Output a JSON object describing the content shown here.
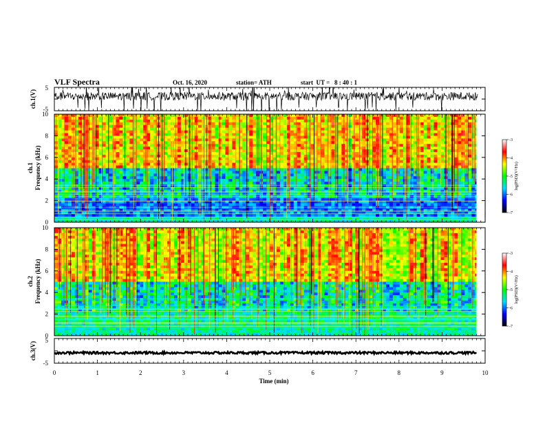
{
  "header": {
    "title": "VLF Spectra",
    "date": "Oct. 16, 2020",
    "station": "station= ATH",
    "start": "start  UT =   8 : 40 : 1"
  },
  "chart_data": [
    {
      "id": "ch1-waveform",
      "type": "line",
      "ylabel": "ch.1(V)",
      "ylim": [
        -5,
        5
      ],
      "yticks": [
        "5",
        "-5"
      ],
      "xlim": [
        0,
        10
      ],
      "line_color": "#000000"
    },
    {
      "id": "ch1-spectrogram",
      "type": "heatmap",
      "ylabel": "ch.1\nFrequency (kHz)",
      "ylim": [
        0,
        10
      ],
      "yticks": [
        "0",
        "2",
        "4",
        "6",
        "8",
        "10"
      ],
      "xlim": [
        0,
        10
      ],
      "colorbar": {
        "label": "log(PSD)(V²/Hz)",
        "ticks": [
          "-3",
          "-4",
          "-5",
          "-6",
          "-7"
        ],
        "range": [
          -7,
          -3
        ],
        "colors": [
          "#000000",
          "#0000ff",
          "#00e0ff",
          "#00ff00",
          "#ffff00",
          "#ff0000",
          "#ffffff"
        ]
      }
    },
    {
      "id": "ch2-spectrogram",
      "type": "heatmap",
      "ylabel": "ch.2\nFrequency (kHz)",
      "ylim": [
        0,
        10
      ],
      "yticks": [
        "0",
        "2",
        "4",
        "6",
        "8",
        "10"
      ],
      "xlim": [
        0,
        10
      ],
      "colorbar": {
        "label": "log(PSD)(V²/Hz)",
        "ticks": [
          "-3",
          "-4",
          "-5",
          "-6",
          "-7"
        ],
        "range": [
          -7,
          -3
        ],
        "colors": [
          "#000000",
          "#0000ff",
          "#00e0ff",
          "#00ff00",
          "#ffff00",
          "#ff0000",
          "#ffffff"
        ]
      }
    },
    {
      "id": "ch3-waveform",
      "type": "line",
      "ylabel": "ch.3(V)",
      "ylim": [
        -5,
        5
      ],
      "yticks": [
        "5",
        "-5"
      ],
      "xlim": [
        0,
        10
      ],
      "xlabel": "Time (min)",
      "xticks": [
        "0",
        "1",
        "2",
        "3",
        "4",
        "5",
        "6",
        "7",
        "8",
        "9",
        "10"
      ],
      "data_end_min": 9.8,
      "line_color": "#000000"
    }
  ]
}
